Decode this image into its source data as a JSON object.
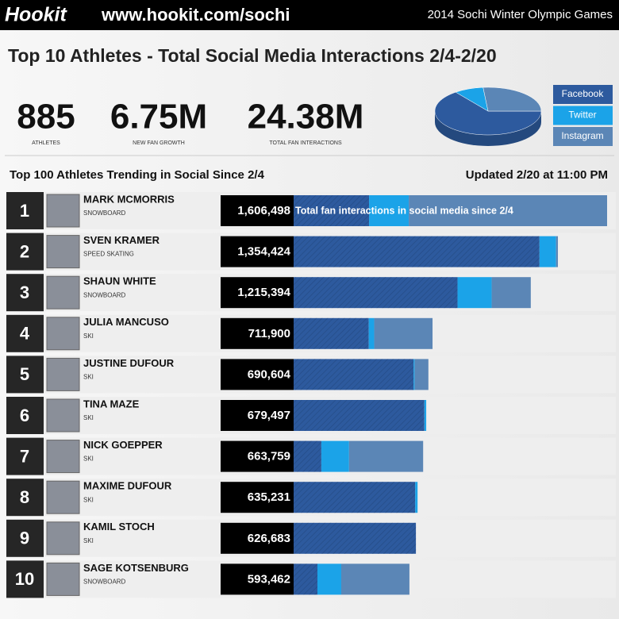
{
  "header": {
    "logo": "Hookit",
    "url": "www.hookit.com/sochi",
    "event": "2014 Sochi Winter Olympic Games"
  },
  "title": "Top 10 Athletes - Total Social Media Interactions 2/4-2/20",
  "stats": [
    {
      "value": "885",
      "label": "ATHLETES"
    },
    {
      "value": "6.75M",
      "label": "NEW FAN GROWTH"
    },
    {
      "value": "24.38M",
      "label": "TOTAL FAN INTERACTIONS"
    }
  ],
  "chart_data": {
    "type": "bar",
    "subtitle": "Top 100 Athletes Trending in Social Since 2/4",
    "updated": "Updated 2/20 at 11:00 PM",
    "annotation": "Total fan interactions in social media since 2/4",
    "ranks": [
      1,
      2,
      3,
      4,
      5,
      6,
      7,
      8,
      9,
      10
    ],
    "categories": [
      "MARK MCMORRIS",
      "SVEN KRAMER",
      "SHAUN WHITE",
      "JULIA MANCUSO",
      "JUSTINE DUFOUR",
      "TINA MAZE",
      "NICK GOEPPER",
      "MAXIME DUFOUR",
      "KAMIL STOCH",
      "SAGE KOTSENBURG"
    ],
    "sports": [
      "SNOWBOARD",
      "SPEED SKATING",
      "SNOWBOARD",
      "SKI",
      "SKI",
      "SKI",
      "SKI",
      "SKI",
      "SKI",
      "SNOWBOARD"
    ],
    "values": [
      1606498,
      1354424,
      1215394,
      711900,
      690604,
      679497,
      663759,
      635231,
      626683,
      593462
    ],
    "value_labels": [
      "1,606,498",
      "1,354,424",
      "1,215,394",
      "711,900",
      "690,604",
      "679,497",
      "663,759",
      "635,231",
      "626,683",
      "593,462"
    ],
    "series": [
      {
        "name": "Facebook",
        "color": "#2d5a9e",
        "values": [
          386650,
          1260000,
          840000,
          385000,
          615000,
          670000,
          142000,
          623000,
          626683,
          122000
        ]
      },
      {
        "name": "Twitter",
        "color": "#1ba3e8",
        "values": [
          203500,
          85000,
          175000,
          28000,
          5000,
          9497,
          142000,
          12231,
          0,
          122000
        ]
      },
      {
        "name": "Instagram",
        "color": "#5b86b6",
        "values": [
          1016348,
          9424,
          200394,
          298900,
          70604,
          0,
          379759,
          0,
          0,
          349462
        ]
      }
    ]
  }
}
